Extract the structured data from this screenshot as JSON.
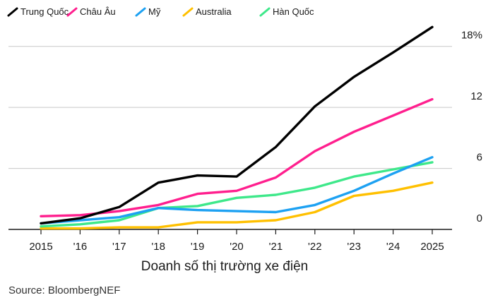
{
  "chart_data": {
    "type": "line",
    "title": "",
    "xlabel": "Doanh số thị trường xe điện",
    "ylabel": "",
    "source": "Source: BloombergNEF",
    "categories": [
      "2015",
      "'16",
      "'17",
      "'18",
      "'19",
      "'20",
      "'21",
      "'22",
      "'23",
      "'24",
      "2025"
    ],
    "y_ticks": [
      {
        "value": 0,
        "label": "0"
      },
      {
        "value": 6,
        "label": "6"
      },
      {
        "value": 12,
        "label": "12"
      },
      {
        "value": 18,
        "label": "18%"
      }
    ],
    "ylim": [
      0,
      20.2
    ],
    "y_axis_side": "right",
    "grid": true,
    "legend_position": "top-left",
    "series": [
      {
        "name": "Trung Quốc",
        "color": "#000000",
        "values": [
          0.6,
          1.1,
          2.2,
          4.6,
          5.3,
          5.2,
          8.1,
          12.1,
          15.0,
          17.4,
          19.9
        ]
      },
      {
        "name": "Châu Âu",
        "color": "#ff1f8e",
        "values": [
          1.3,
          1.4,
          1.8,
          2.4,
          3.5,
          3.8,
          5.1,
          7.7,
          9.6,
          11.2,
          12.8
        ]
      },
      {
        "name": "Mỹ",
        "color": "#1da1f2",
        "values": [
          0.6,
          0.9,
          1.2,
          2.1,
          1.9,
          1.8,
          1.7,
          2.4,
          3.8,
          5.5,
          7.1
        ]
      },
      {
        "name": "Australia",
        "color": "#ffc000",
        "values": [
          0.1,
          0.1,
          0.2,
          0.2,
          0.7,
          0.7,
          0.9,
          1.7,
          3.3,
          3.8,
          4.6
        ]
      },
      {
        "name": "Hàn Quốc",
        "color": "#3ee88a",
        "values": [
          0.3,
          0.5,
          0.9,
          2.1,
          2.3,
          3.1,
          3.4,
          4.1,
          5.2,
          5.9,
          6.6
        ]
      }
    ]
  }
}
